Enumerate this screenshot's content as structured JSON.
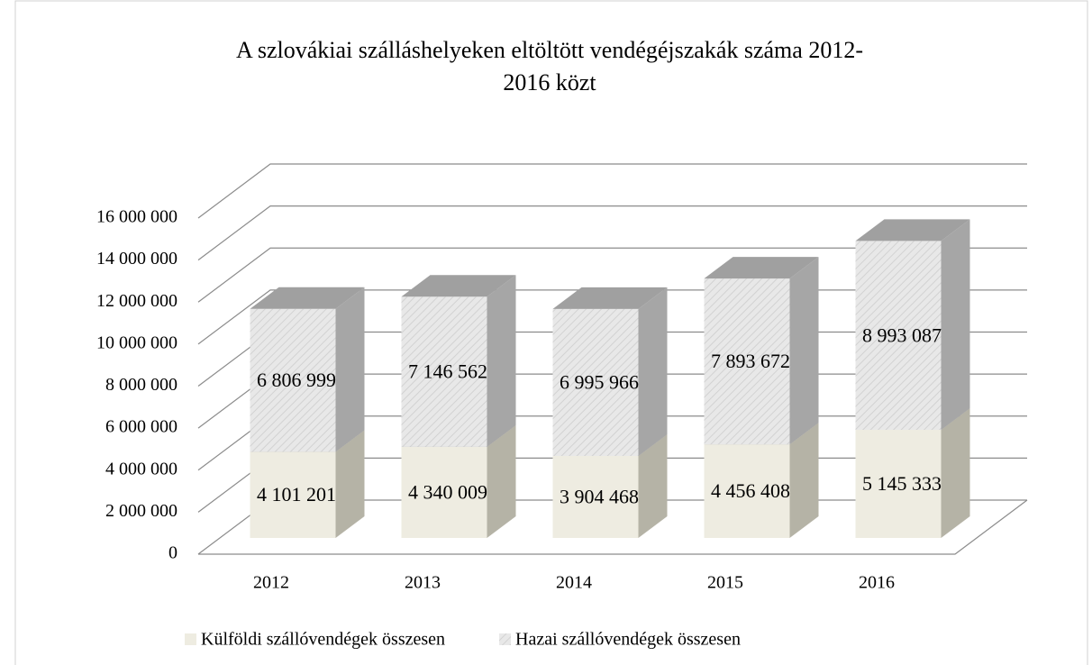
{
  "chart_data": {
    "type": "bar3d_stacked",
    "title": [
      "A szlovákiai szálláshelyeken eltöltött vendégéjszakák száma 2012-",
      "2016 közt"
    ],
    "categories": [
      "2012",
      "2013",
      "2014",
      "2015",
      "2016"
    ],
    "series": [
      {
        "name": "Külföldi szállóvendégek összesen",
        "color": "#eeece1",
        "values": [
          4101201,
          4340009,
          3904468,
          4456408,
          5145333
        ],
        "value_labels": [
          "4 101 201",
          "4 340 009",
          "3 904 468",
          "4 456 408",
          "5 145 333"
        ]
      },
      {
        "name": "Hazai szállóvendégek összesen",
        "color": "#e3e3e3",
        "values": [
          6806999,
          7146562,
          6995966,
          7893672,
          8993087
        ],
        "value_labels": [
          "6 806 999",
          "7 146 562",
          "6 995 966",
          "7 893 672",
          "8 993 087"
        ]
      }
    ],
    "ylim": [
      0,
      16000000
    ],
    "yticks": [
      0,
      {
        "value": 2000000,
        "label": "2 000 000"
      },
      {
        "value": 4000000,
        "label": "4 000 000"
      },
      {
        "value": 6000000,
        "label": "6 000 000"
      },
      {
        "value": 8000000,
        "label": "8 000 000"
      },
      {
        "value": 10000000,
        "label": "10 000 000"
      },
      {
        "value": 12000000,
        "label": "12 000 000"
      },
      {
        "value": 14000000,
        "label": "14 000 000"
      },
      {
        "value": 16000000,
        "label": "16 000 000"
      }
    ],
    "grid": true,
    "legend": "bottom"
  }
}
